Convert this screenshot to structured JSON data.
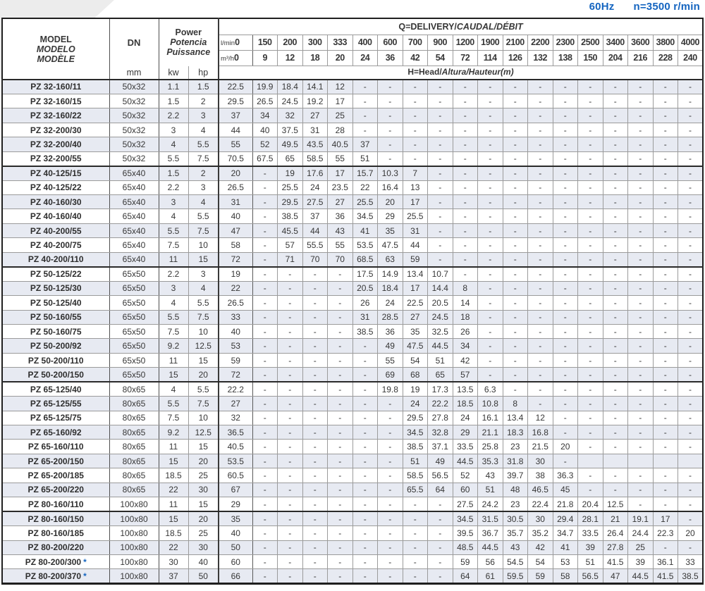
{
  "page": {
    "frequency": "60Hz",
    "speed": "n=3500 r/min",
    "accent_blue": "#1565c0"
  },
  "table": {
    "header": {
      "model_en": "MODEL",
      "model_es": "MODELO",
      "model_fr": "MODÈLE",
      "dn_label": "DN",
      "dn_unit": "mm",
      "power_en": "Power",
      "power_es": "Potencia",
      "power_fr": "Puissance",
      "kw_label": "kw",
      "hp_label": "hp",
      "delivery_label_en": "Q=DELIVERY/",
      "delivery_label_intl": "CAUDAL/DÉBIT",
      "head_label_en": "H=Head/",
      "head_label_intl": "Altura/Hauteur(m)",
      "lmin_label": "l/min",
      "m3h_label": "m³/h",
      "flow_lmin": [
        "0",
        "150",
        "200",
        "300",
        "333",
        "400",
        "600",
        "700",
        "900",
        "1200",
        "1900",
        "2100",
        "2200",
        "2300",
        "2500",
        "3400",
        "3600",
        "3800",
        "4000"
      ],
      "flow_m3h": [
        "0",
        "9",
        "12",
        "18",
        "20",
        "24",
        "36",
        "42",
        "54",
        "72",
        "114",
        "126",
        "132",
        "138",
        "150",
        "204",
        "216",
        "228",
        "240"
      ]
    },
    "group_end_rows": [
      5,
      12,
      20,
      29
    ],
    "rows": [
      {
        "model": "PZ 32-160/11",
        "star": "",
        "dn": "50x32",
        "kw": "1.1",
        "hp": "1.5",
        "heads": [
          "22.5",
          "19.9",
          "18.4",
          "14.1",
          "12",
          "-",
          "-",
          "-",
          "-",
          "-",
          "-",
          "-",
          "-",
          "-",
          "-",
          "-",
          "-",
          "-",
          "-"
        ]
      },
      {
        "model": "PZ 32-160/15",
        "star": "",
        "dn": "50x32",
        "kw": "1.5",
        "hp": "2",
        "heads": [
          "29.5",
          "26.5",
          "24.5",
          "19.2",
          "17",
          "-",
          "-",
          "-",
          "-",
          "-",
          "-",
          "-",
          "-",
          "-",
          "-",
          "-",
          "-",
          "-",
          "-"
        ]
      },
      {
        "model": "PZ 32-160/22",
        "star": "",
        "dn": "50x32",
        "kw": "2.2",
        "hp": "3",
        "heads": [
          "37",
          "34",
          "32",
          "27",
          "25",
          "-",
          "-",
          "-",
          "-",
          "-",
          "-",
          "-",
          "-",
          "-",
          "-",
          "-",
          "-",
          "-",
          "-"
        ]
      },
      {
        "model": "PZ 32-200/30",
        "star": "",
        "dn": "50x32",
        "kw": "3",
        "hp": "4",
        "heads": [
          "44",
          "40",
          "37.5",
          "31",
          "28",
          "-",
          "-",
          "-",
          "-",
          "-",
          "-",
          "-",
          "-",
          "-",
          "-",
          "-",
          "-",
          "-",
          "-"
        ]
      },
      {
        "model": "PZ 32-200/40",
        "star": "",
        "dn": "50x32",
        "kw": "4",
        "hp": "5.5",
        "heads": [
          "55",
          "52",
          "49.5",
          "43.5",
          "40.5",
          "37",
          "-",
          "-",
          "-",
          "-",
          "-",
          "-",
          "-",
          "-",
          "-",
          "-",
          "-",
          "-",
          "-"
        ]
      },
      {
        "model": "PZ 32-200/55",
        "star": "",
        "dn": "50x32",
        "kw": "5.5",
        "hp": "7.5",
        "heads": [
          "70.5",
          "67.5",
          "65",
          "58.5",
          "55",
          "51",
          "-",
          "-",
          "-",
          "-",
          "-",
          "-",
          "-",
          "-",
          "-",
          "-",
          "-",
          "-",
          "-"
        ]
      },
      {
        "model": "PZ 40-125/15",
        "star": "",
        "dn": "65x40",
        "kw": "1.5",
        "hp": "2",
        "heads": [
          "20",
          "-",
          "19",
          "17.6",
          "17",
          "15.7",
          "10.3",
          "7",
          "-",
          "-",
          "-",
          "-",
          "-",
          "-",
          "-",
          "-",
          "-",
          "-",
          "-"
        ]
      },
      {
        "model": "PZ 40-125/22",
        "star": "",
        "dn": "65x40",
        "kw": "2.2",
        "hp": "3",
        "heads": [
          "26.5",
          "-",
          "25.5",
          "24",
          "23.5",
          "22",
          "16.4",
          "13",
          "-",
          "-",
          "-",
          "-",
          "-",
          "-",
          "-",
          "-",
          "-",
          "-",
          "-"
        ]
      },
      {
        "model": "PZ 40-160/30",
        "star": "",
        "dn": "65x40",
        "kw": "3",
        "hp": "4",
        "heads": [
          "31",
          "-",
          "29.5",
          "27.5",
          "27",
          "25.5",
          "20",
          "17",
          "-",
          "-",
          "-",
          "-",
          "-",
          "-",
          "-",
          "-",
          "-",
          "-",
          "-"
        ]
      },
      {
        "model": "PZ 40-160/40",
        "star": "",
        "dn": "65x40",
        "kw": "4",
        "hp": "5.5",
        "heads": [
          "40",
          "-",
          "38.5",
          "37",
          "36",
          "34.5",
          "29",
          "25.5",
          "-",
          "-",
          "-",
          "-",
          "-",
          "-",
          "-",
          "-",
          "-",
          "-",
          "-"
        ]
      },
      {
        "model": "PZ 40-200/55",
        "star": "",
        "dn": "65x40",
        "kw": "5.5",
        "hp": "7.5",
        "heads": [
          "47",
          "-",
          "45.5",
          "44",
          "43",
          "41",
          "35",
          "31",
          "-",
          "-",
          "-",
          "-",
          "-",
          "-",
          "-",
          "-",
          "-",
          "-",
          "-"
        ]
      },
      {
        "model": "PZ 40-200/75",
        "star": "",
        "dn": "65x40",
        "kw": "7.5",
        "hp": "10",
        "heads": [
          "58",
          "-",
          "57",
          "55.5",
          "55",
          "53.5",
          "47.5",
          "44",
          "-",
          "-",
          "-",
          "-",
          "-",
          "-",
          "-",
          "-",
          "-",
          "-",
          "-"
        ]
      },
      {
        "model": "PZ 40-200/110",
        "star": "",
        "dn": "65x40",
        "kw": "11",
        "hp": "15",
        "heads": [
          "72",
          "-",
          "71",
          "70",
          "70",
          "68.5",
          "63",
          "59",
          "-",
          "-",
          "-",
          "-",
          "-",
          "-",
          "-",
          "-",
          "-",
          "-",
          "-"
        ]
      },
      {
        "model": "PZ 50-125/22",
        "star": "",
        "dn": "65x50",
        "kw": "2.2",
        "hp": "3",
        "heads": [
          "19",
          "-",
          "-",
          "-",
          "-",
          "17.5",
          "14.9",
          "13.4",
          "10.7",
          "-",
          "-",
          "-",
          "-",
          "-",
          "-",
          "-",
          "-",
          "-",
          "-"
        ]
      },
      {
        "model": "PZ 50-125/30",
        "star": "",
        "dn": "65x50",
        "kw": "3",
        "hp": "4",
        "heads": [
          "22",
          "-",
          "-",
          "-",
          "-",
          "20.5",
          "18.4",
          "17",
          "14.4",
          "8",
          "-",
          "-",
          "-",
          "-",
          "-",
          "-",
          "-",
          "-",
          "-"
        ]
      },
      {
        "model": "PZ 50-125/40",
        "star": "",
        "dn": "65x50",
        "kw": "4",
        "hp": "5.5",
        "heads": [
          "26.5",
          "-",
          "-",
          "-",
          "-",
          "26",
          "24",
          "22.5",
          "20.5",
          "14",
          "-",
          "-",
          "-",
          "-",
          "-",
          "-",
          "-",
          "-",
          "-"
        ]
      },
      {
        "model": "PZ 50-160/55",
        "star": "",
        "dn": "65x50",
        "kw": "5.5",
        "hp": "7.5",
        "heads": [
          "33",
          "-",
          "-",
          "-",
          "-",
          "31",
          "28.5",
          "27",
          "24.5",
          "18",
          "-",
          "-",
          "-",
          "-",
          "-",
          "-",
          "-",
          "-",
          "-"
        ]
      },
      {
        "model": "PZ 50-160/75",
        "star": "",
        "dn": "65x50",
        "kw": "7.5",
        "hp": "10",
        "heads": [
          "40",
          "-",
          "-",
          "-",
          "-",
          "38.5",
          "36",
          "35",
          "32.5",
          "26",
          "-",
          "-",
          "-",
          "-",
          "-",
          "-",
          "-",
          "-",
          "-"
        ]
      },
      {
        "model": "PZ 50-200/92",
        "star": "",
        "dn": "65x50",
        "kw": "9.2",
        "hp": "12.5",
        "heads": [
          "53",
          "-",
          "-",
          "-",
          "-",
          "-",
          "49",
          "47.5",
          "44.5",
          "34",
          "-",
          "-",
          "-",
          "-",
          "-",
          "-",
          "-",
          "-",
          "-"
        ]
      },
      {
        "model": "PZ 50-200/110",
        "star": "",
        "dn": "65x50",
        "kw": "11",
        "hp": "15",
        "heads": [
          "59",
          "-",
          "-",
          "-",
          "-",
          "-",
          "55",
          "54",
          "51",
          "42",
          "-",
          "-",
          "-",
          "-",
          "-",
          "-",
          "-",
          "-",
          "-"
        ]
      },
      {
        "model": "PZ 50-200/150",
        "star": "",
        "dn": "65x50",
        "kw": "15",
        "hp": "20",
        "heads": [
          "72",
          "-",
          "-",
          "-",
          "-",
          "-",
          "69",
          "68",
          "65",
          "57",
          "-",
          "-",
          "-",
          "-",
          "-",
          "-",
          "-",
          "-",
          "-"
        ]
      },
      {
        "model": "PZ 65-125/40",
        "star": "",
        "dn": "80x65",
        "kw": "4",
        "hp": "5.5",
        "heads": [
          "22.2",
          "-",
          "-",
          "-",
          "-",
          "-",
          "19.8",
          "19",
          "17.3",
          "13.5",
          "6.3",
          "-",
          "-",
          "-",
          "-",
          "-",
          "-",
          "-",
          "-"
        ]
      },
      {
        "model": "PZ 65-125/55",
        "star": "",
        "dn": "80x65",
        "kw": "5.5",
        "hp": "7.5",
        "heads": [
          "27",
          "-",
          "-",
          "-",
          "-",
          "-",
          "-",
          "24",
          "22.2",
          "18.5",
          "10.8",
          "8",
          "-",
          "-",
          "-",
          "-",
          "-",
          "-",
          "-"
        ]
      },
      {
        "model": "PZ 65-125/75",
        "star": "",
        "dn": "80x65",
        "kw": "7.5",
        "hp": "10",
        "heads": [
          "32",
          "-",
          "-",
          "-",
          "-",
          "-",
          "-",
          "29.5",
          "27.8",
          "24",
          "16.1",
          "13.4",
          "12",
          "-",
          "-",
          "-",
          "-",
          "-",
          "-"
        ]
      },
      {
        "model": "PZ 65-160/92",
        "star": "",
        "dn": "80x65",
        "kw": "9.2",
        "hp": "12.5",
        "heads": [
          "36.5",
          "-",
          "-",
          "-",
          "-",
          "-",
          "-",
          "34.5",
          "32.8",
          "29",
          "21.1",
          "18.3",
          "16.8",
          "-",
          "-",
          "-",
          "-",
          "-",
          "-"
        ]
      },
      {
        "model": "PZ 65-160/110",
        "star": "",
        "dn": "80x65",
        "kw": "11",
        "hp": "15",
        "heads": [
          "40.5",
          "-",
          "-",
          "-",
          "-",
          "-",
          "-",
          "38.5",
          "37.1",
          "33.5",
          "25.8",
          "23",
          "21.5",
          "20",
          "-",
          "-",
          "-",
          "-",
          "-"
        ]
      },
      {
        "model": "PZ 65-200/150",
        "star": "",
        "dn": "80x65",
        "kw": "15",
        "hp": "20",
        "heads": [
          "53.5",
          "-",
          "-",
          "-",
          "-",
          "-",
          "-",
          "51",
          "49",
          "44.5",
          "35.3",
          "31.8",
          "30",
          "-",
          "",
          "",
          "",
          "",
          ""
        ]
      },
      {
        "model": "PZ 65-200/185",
        "star": "",
        "dn": "80x65",
        "kw": "18.5",
        "hp": "25",
        "heads": [
          "60.5",
          "-",
          "-",
          "-",
          "-",
          "-",
          "-",
          "58.5",
          "56.5",
          "52",
          "43",
          "39.7",
          "38",
          "36.3",
          "-",
          "-",
          "-",
          "-",
          "-"
        ]
      },
      {
        "model": "PZ 65-200/220",
        "star": "",
        "dn": "80x65",
        "kw": "22",
        "hp": "30",
        "heads": [
          "67",
          "-",
          "-",
          "-",
          "-",
          "-",
          "-",
          "65.5",
          "64",
          "60",
          "51",
          "48",
          "46.5",
          "45",
          "-",
          "-",
          "-",
          "-",
          "-"
        ]
      },
      {
        "model": "PZ 80-160/110",
        "star": "",
        "dn": "100x80",
        "kw": "11",
        "hp": "15",
        "heads": [
          "29",
          "-",
          "-",
          "-",
          "-",
          "-",
          "-",
          "-",
          "-",
          "27.5",
          "24.2",
          "23",
          "22.4",
          "21.8",
          "20.4",
          "12.5",
          "-",
          "-",
          "-"
        ]
      },
      {
        "model": "PZ 80-160/150",
        "star": "",
        "dn": "100x80",
        "kw": "15",
        "hp": "20",
        "heads": [
          "35",
          "-",
          "-",
          "-",
          "-",
          "-",
          "-",
          "-",
          "-",
          "34.5",
          "31.5",
          "30.5",
          "30",
          "29.4",
          "28.1",
          "21",
          "19.1",
          "17",
          "-"
        ]
      },
      {
        "model": "PZ 80-160/185",
        "star": "",
        "dn": "100x80",
        "kw": "18.5",
        "hp": "25",
        "heads": [
          "40",
          "-",
          "-",
          "-",
          "-",
          "-",
          "-",
          "-",
          "-",
          "39.5",
          "36.7",
          "35.7",
          "35.2",
          "34.7",
          "33.5",
          "26.4",
          "24.4",
          "22.3",
          "20"
        ]
      },
      {
        "model": "PZ 80-200/220",
        "star": "",
        "dn": "100x80",
        "kw": "22",
        "hp": "30",
        "heads": [
          "50",
          "-",
          "-",
          "-",
          "-",
          "-",
          "-",
          "-",
          "-",
          "48.5",
          "44.5",
          "43",
          "42",
          "41",
          "39",
          "27.8",
          "25",
          "-",
          "-"
        ]
      },
      {
        "model": "PZ 80-200/300",
        "star": "*",
        "dn": "100x80",
        "kw": "30",
        "hp": "40",
        "heads": [
          "60",
          "-",
          "-",
          "-",
          "-",
          "-",
          "-",
          "-",
          "-",
          "59",
          "56",
          "54.5",
          "54",
          "53",
          "51",
          "41.5",
          "39",
          "36.1",
          "33"
        ]
      },
      {
        "model": "PZ 80-200/370",
        "star": "*",
        "dn": "100x80",
        "kw": "37",
        "hp": "50",
        "heads": [
          "66",
          "-",
          "-",
          "-",
          "-",
          "-",
          "-",
          "-",
          "-",
          "64",
          "61",
          "59.5",
          "59",
          "58",
          "56.5",
          "47",
          "44.5",
          "41.5",
          "38.5"
        ]
      }
    ]
  }
}
